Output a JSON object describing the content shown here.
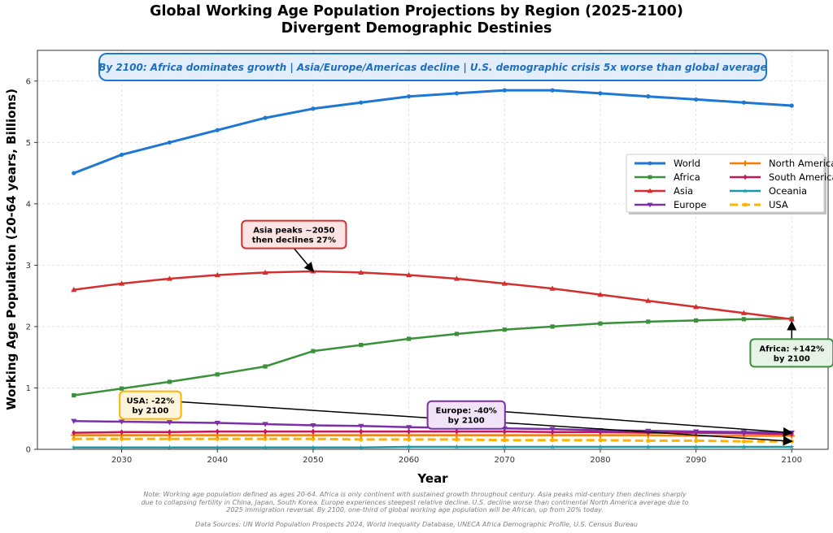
{
  "chart_data": {
    "type": "line",
    "title": "Global Working Age Population Projections by Region (2025-2100)",
    "subtitle": "Divergent Demographic Destinies",
    "xlabel": "Year",
    "ylabel": "Working Age Population (20-64 years, Billions)",
    "xlim": [
      2021.2,
      2103.8
    ],
    "ylim": [
      0,
      6.5
    ],
    "xticks": [
      2030,
      2040,
      2050,
      2060,
      2070,
      2080,
      2090,
      2100
    ],
    "yticks": [
      0,
      1,
      2,
      3,
      4,
      5,
      6
    ],
    "grid": true,
    "legend_position": "right",
    "x": [
      2025,
      2030,
      2035,
      2040,
      2045,
      2050,
      2055,
      2060,
      2065,
      2070,
      2075,
      2080,
      2085,
      2090,
      2095,
      2100
    ],
    "series": [
      {
        "name": "World",
        "color": "#1f77d4",
        "marker": "circle",
        "dash": false,
        "width": 3,
        "values": [
          4.5,
          4.8,
          5.0,
          5.2,
          5.4,
          5.55,
          5.65,
          5.75,
          5.8,
          5.85,
          5.85,
          5.8,
          5.75,
          5.7,
          5.65,
          5.6
        ]
      },
      {
        "name": "Africa",
        "color": "#3a913a",
        "marker": "square",
        "dash": false,
        "width": 2.5,
        "values": [
          0.88,
          0.99,
          1.1,
          1.22,
          1.35,
          1.6,
          1.7,
          1.8,
          1.88,
          1.95,
          2.0,
          2.05,
          2.08,
          2.1,
          2.12,
          2.13
        ]
      },
      {
        "name": "Asia",
        "color": "#d32f2f",
        "marker": "triangle-up",
        "dash": false,
        "width": 2.5,
        "values": [
          2.6,
          2.7,
          2.78,
          2.84,
          2.88,
          2.9,
          2.88,
          2.84,
          2.78,
          2.7,
          2.62,
          2.52,
          2.42,
          2.32,
          2.22,
          2.12
        ]
      },
      {
        "name": "Europe",
        "color": "#7b2fa8",
        "marker": "triangle-down",
        "dash": false,
        "width": 2.5,
        "values": [
          0.46,
          0.45,
          0.44,
          0.43,
          0.41,
          0.39,
          0.38,
          0.36,
          0.35,
          0.34,
          0.33,
          0.31,
          0.3,
          0.29,
          0.28,
          0.27
        ]
      },
      {
        "name": "North America",
        "color": "#f57c00",
        "marker": "plus",
        "dash": false,
        "width": 2.5,
        "values": [
          0.23,
          0.23,
          0.23,
          0.23,
          0.23,
          0.23,
          0.23,
          0.23,
          0.23,
          0.23,
          0.23,
          0.23,
          0.23,
          0.22,
          0.22,
          0.22
        ]
      },
      {
        "name": "South America",
        "color": "#c2185b",
        "marker": "diamond",
        "dash": false,
        "width": 2.5,
        "values": [
          0.27,
          0.28,
          0.28,
          0.29,
          0.29,
          0.29,
          0.29,
          0.29,
          0.29,
          0.29,
          0.28,
          0.28,
          0.27,
          0.27,
          0.26,
          0.25
        ]
      },
      {
        "name": "Oceania",
        "color": "#1a9aa8",
        "marker": "star",
        "dash": false,
        "width": 2.5,
        "values": [
          0.03,
          0.03,
          0.03,
          0.03,
          0.03,
          0.03,
          0.03,
          0.04,
          0.04,
          0.04,
          0.04,
          0.04,
          0.04,
          0.04,
          0.04,
          0.04
        ]
      },
      {
        "name": "USA",
        "color": "#ffb300",
        "marker": "circle",
        "dash": true,
        "width": 3,
        "values": [
          0.17,
          0.17,
          0.17,
          0.17,
          0.17,
          0.17,
          0.16,
          0.16,
          0.16,
          0.15,
          0.15,
          0.15,
          0.14,
          0.14,
          0.13,
          0.13
        ]
      }
    ],
    "banner": "By 2100: Africa dominates growth | Asia/Europe/Americas decline | U.S. demographic crisis 5x worse than global average",
    "annotations": [
      {
        "id": "asia",
        "lines": [
          "Asia peaks ~2050",
          "then declines 27%"
        ],
        "target_x": 2050,
        "target_y": 2.9,
        "text_x": 2048,
        "text_y": 3.5,
        "edge": "#d32f2f",
        "fill": "#fde4e4"
      },
      {
        "id": "africa",
        "lines": [
          "Africa: +142%",
          "by 2100"
        ],
        "target_x": 2100,
        "target_y": 2.13,
        "text_x": 2100,
        "text_y": 1.57,
        "edge": "#3a913a",
        "fill": "#e6f3e6"
      },
      {
        "id": "usa",
        "lines": [
          "USA: -22%",
          "by 2100"
        ],
        "target_x": 2100,
        "target_y": 0.13,
        "text_x": 2033,
        "text_y": 0.72,
        "edge": "#ffb300",
        "fill": "#fff5dc"
      },
      {
        "id": "europe",
        "lines": [
          "Europe: -40%",
          "by 2100"
        ],
        "target_x": 2100,
        "target_y": 0.27,
        "text_x": 2066,
        "text_y": 0.56,
        "edge": "#7b2fa8",
        "fill": "#f1e4f8"
      }
    ]
  },
  "footer": {
    "note_lines": [
      "Note: Working age population defined as ages 20-64. Africa is only continent with sustained growth throughout century. Asia peaks mid-century then declines sharply",
      "due to collapsing fertility in China, Japan, South Korea. Europe experiences steepest relative decline. U.S. decline worse than continental North America average due to",
      "2025 immigration reversal. By 2100, one-third of global working age population will be African, up from 20% today."
    ],
    "sources": "Data Sources: UN World Population Prospects 2024, World Inequality Database, UNECA Africa Demographic Profile, U.S. Census Bureau"
  }
}
